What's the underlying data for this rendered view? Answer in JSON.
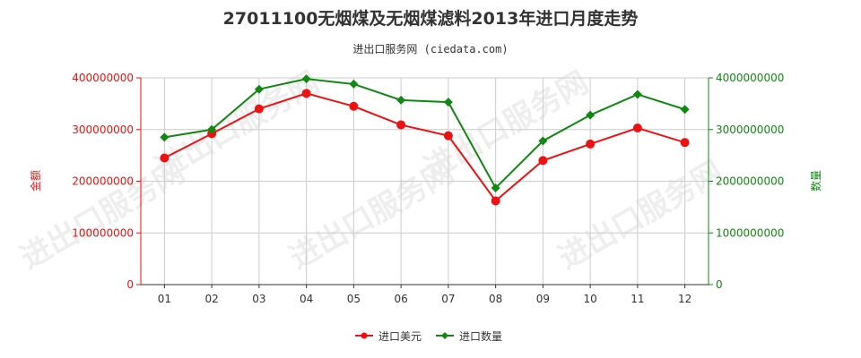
{
  "title": "27011100无烟煤及无烟煤滤料2013年进口月度走势",
  "subtitle": "进出口服务网 (ciedata.com)",
  "watermark": "进出口服务网",
  "colors": {
    "amount": "#ee1111",
    "quantity": "#118811",
    "grid": "#cccccc",
    "left_axis": "#ee1111",
    "right_axis": "#118811"
  },
  "chart_data": {
    "type": "line",
    "categories": [
      "01",
      "02",
      "03",
      "04",
      "05",
      "06",
      "07",
      "08",
      "09",
      "10",
      "11",
      "12"
    ],
    "left_axis": {
      "label": "金额",
      "ylim": [
        0,
        400000000
      ],
      "ticks": [
        "0",
        "100000000",
        "200000000",
        "300000000",
        "400000000"
      ],
      "tick_values": [
        0,
        100000000,
        200000000,
        300000000,
        400000000
      ]
    },
    "right_axis": {
      "label": "数量",
      "ylim": [
        0,
        4000000000
      ],
      "ticks": [
        "0",
        "1000000000",
        "2000000000",
        "3000000000",
        "4000000000"
      ],
      "tick_values": [
        0,
        1000000000,
        2000000000,
        3000000000,
        4000000000
      ]
    },
    "series": [
      {
        "name": "进口美元",
        "axis": "left",
        "marker": "circle",
        "values": [
          245000000,
          292000000,
          340000000,
          370000000,
          345000000,
          309000000,
          288000000,
          162000000,
          240000000,
          272000000,
          303000000,
          275000000
        ]
      },
      {
        "name": "进口数量",
        "axis": "right",
        "marker": "diamond",
        "values": [
          2850000000,
          3000000000,
          3780000000,
          3980000000,
          3880000000,
          3570000000,
          3530000000,
          1870000000,
          2780000000,
          3280000000,
          3680000000,
          3390000000
        ]
      }
    ],
    "grid": true,
    "legend_position": "bottom"
  }
}
